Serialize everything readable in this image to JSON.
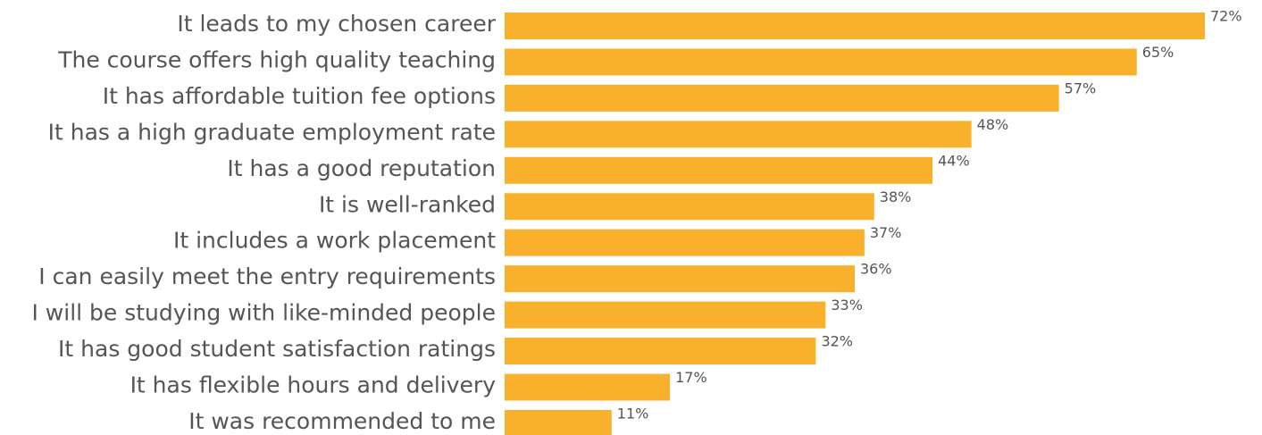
{
  "chart_data": {
    "type": "bar",
    "orientation": "horizontal",
    "categories": [
      "It leads to my chosen career",
      "The course offers high quality teaching",
      "It has affordable tuition fee options",
      "It has a high graduate employment rate",
      "It has a good reputation",
      "It is well-ranked",
      "It includes a work placement",
      "I can easily meet the entry requirements",
      "I will be studying with like-minded people",
      "It has good student satisfaction ratings",
      "It has flexible hours and delivery",
      "It was recommended to me"
    ],
    "values": [
      72,
      65,
      57,
      48,
      44,
      38,
      37,
      36,
      33,
      32,
      17,
      11
    ],
    "value_labels": [
      "72%",
      "65%",
      "57%",
      "48%",
      "44%",
      "38%",
      "37%",
      "36%",
      "33%",
      "32%",
      "17%",
      "11%"
    ],
    "color": "#f9b02d"
  }
}
